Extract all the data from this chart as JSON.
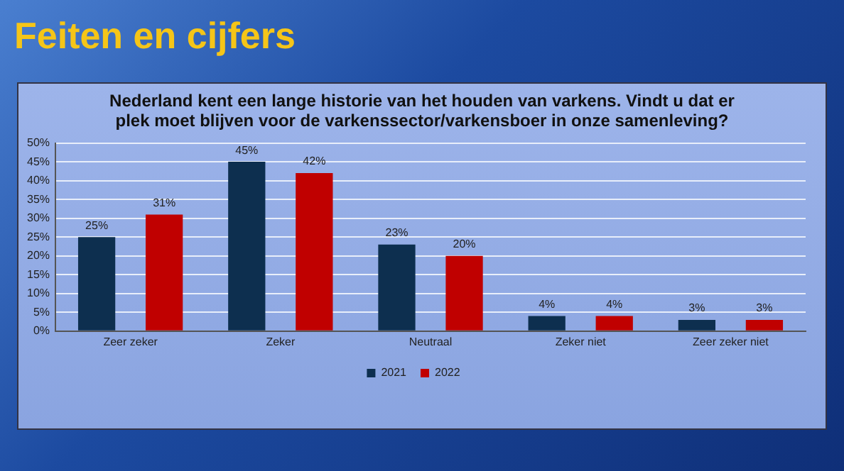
{
  "chart_data": {
    "type": "bar",
    "title": "Feiten en cijfers",
    "subtitle": "Nederland kent een lange historie van het houden van varkens. Vindt u dat er plek moet blijven voor de varkenssector/varkensboer in onze samenleving?",
    "categories": [
      "Zeer zeker",
      "Zeker",
      "Neutraal",
      "Zeker niet",
      "Zeer zeker niet"
    ],
    "series": [
      {
        "name": "2021",
        "color": "#0d2f4f",
        "values": [
          25,
          45,
          23,
          4,
          3
        ],
        "value_labels": [
          "25%",
          "45%",
          "23%",
          "4%",
          "3%"
        ]
      },
      {
        "name": "2022",
        "color": "#c00000",
        "values": [
          31,
          42,
          20,
          4,
          3
        ],
        "value_labels": [
          "31%",
          "42%",
          "20%",
          "4%",
          "3%"
        ]
      }
    ],
    "ylim": [
      0,
      50
    ],
    "yticks": [
      {
        "value": 0,
        "label": "0%"
      },
      {
        "value": 5,
        "label": "5%"
      },
      {
        "value": 10,
        "label": "10%"
      },
      {
        "value": 15,
        "label": "15%"
      },
      {
        "value": 20,
        "label": "20%"
      },
      {
        "value": 25,
        "label": "25%"
      },
      {
        "value": 30,
        "label": "30%"
      },
      {
        "value": 35,
        "label": "35%"
      },
      {
        "value": 40,
        "label": "40%"
      },
      {
        "value": 45,
        "label": "45%"
      },
      {
        "value": 50,
        "label": "50%"
      }
    ],
    "grid": "y",
    "legend": "bottom"
  }
}
